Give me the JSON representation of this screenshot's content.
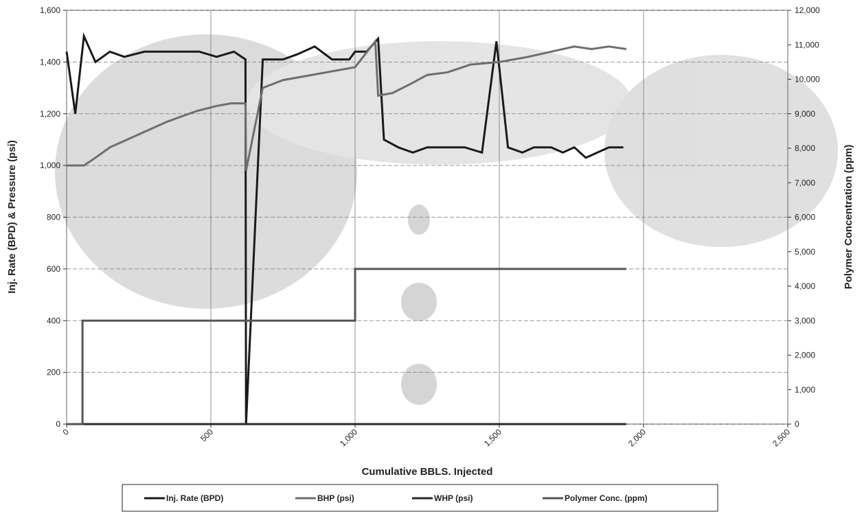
{
  "chart_data": {
    "type": "line",
    "xlabel": "Cumulative BBLS. Injected",
    "ylabel": "Inj. Rate (BPD) & Pressure (psi)",
    "y2label": "Polymer Concentration (ppm)",
    "xlim": [
      0,
      2500
    ],
    "xticks": [
      0,
      500,
      {
        "value": 1000,
        "label": "1,000"
      },
      {
        "value": 1500,
        "label": "1,500"
      },
      {
        "value": 2000,
        "label": "2,000"
      },
      {
        "value": 2500,
        "label": "2,500"
      }
    ],
    "ylim": [
      0,
      1600
    ],
    "yticks": [
      0,
      200,
      400,
      600,
      800,
      {
        "value": 1000,
        "label": "1,000"
      },
      {
        "value": 1200,
        "label": "1,200"
      },
      {
        "value": 1400,
        "label": "1,400"
      },
      {
        "value": 1600,
        "label": "1,600"
      }
    ],
    "y2lim": [
      0,
      12000
    ],
    "y2ticks": [
      0,
      {
        "value": 1000,
        "label": "1,000"
      },
      {
        "value": 2000,
        "label": "2,000"
      },
      {
        "value": 3000,
        "label": "3,000"
      },
      {
        "value": 4000,
        "label": "4,000"
      },
      {
        "value": 5000,
        "label": "5,000"
      },
      {
        "value": 6000,
        "label": "6,000"
      },
      {
        "value": 7000,
        "label": "7,000"
      },
      {
        "value": 8000,
        "label": "8,000"
      },
      {
        "value": 9000,
        "label": "9,000"
      },
      {
        "value": 10000,
        "label": "10,000"
      },
      {
        "value": 11000,
        "label": "11,000"
      },
      {
        "value": 12000,
        "label": "12,000"
      }
    ],
    "grid": true,
    "legend": "bottom",
    "series": [
      {
        "name": "Inj. Rate (BPD)",
        "color": "#1a1a1a",
        "x": [
          0,
          30,
          60,
          100,
          150,
          200,
          270,
          330,
          400,
          460,
          520,
          580,
          620,
          622,
          680,
          750,
          800,
          860,
          920,
          980,
          1000,
          1040,
          1080,
          1100,
          1150,
          1200,
          1250,
          1320,
          1380,
          1440,
          1490,
          1530,
          1580,
          1620,
          1680,
          1720,
          1760,
          1800,
          1840,
          1880,
          1930
        ],
        "values": [
          1440,
          1200,
          1500,
          1400,
          1440,
          1420,
          1440,
          1440,
          1440,
          1440,
          1420,
          1440,
          1410,
          0,
          1410,
          1410,
          1430,
          1460,
          1410,
          1410,
          1440,
          1440,
          1490,
          1100,
          1070,
          1050,
          1070,
          1070,
          1070,
          1050,
          1480,
          1070,
          1050,
          1070,
          1070,
          1050,
          1070,
          1030,
          1050,
          1070,
          1070
        ]
      },
      {
        "name": "BHP (psi)",
        "color": "#6e6e6e",
        "x": [
          0,
          60,
          100,
          150,
          250,
          350,
          450,
          520,
          570,
          620,
          622,
          680,
          750,
          850,
          950,
          1000,
          1070,
          1080,
          1130,
          1200,
          1250,
          1320,
          1400,
          1500,
          1600,
          1680,
          1760,
          1820,
          1880,
          1940
        ],
        "values": [
          1000,
          1000,
          1030,
          1070,
          1120,
          1170,
          1210,
          1230,
          1240,
          1240,
          980,
          1300,
          1330,
          1350,
          1370,
          1380,
          1480,
          1270,
          1280,
          1320,
          1350,
          1360,
          1390,
          1400,
          1420,
          1440,
          1460,
          1450,
          1460,
          1450
        ]
      },
      {
        "name": "WHP (psi)",
        "color": "#2a2a2a",
        "x": [
          0,
          1940
        ],
        "values": [
          0,
          0
        ]
      },
      {
        "name": "Polymer Conc. (ppm)",
        "color": "#555555",
        "axis": "y2",
        "x": [
          0,
          55,
          55,
          1000,
          1000,
          1940
        ],
        "values": [
          0,
          0,
          3000,
          3000,
          4500,
          4500
        ]
      }
    ]
  }
}
